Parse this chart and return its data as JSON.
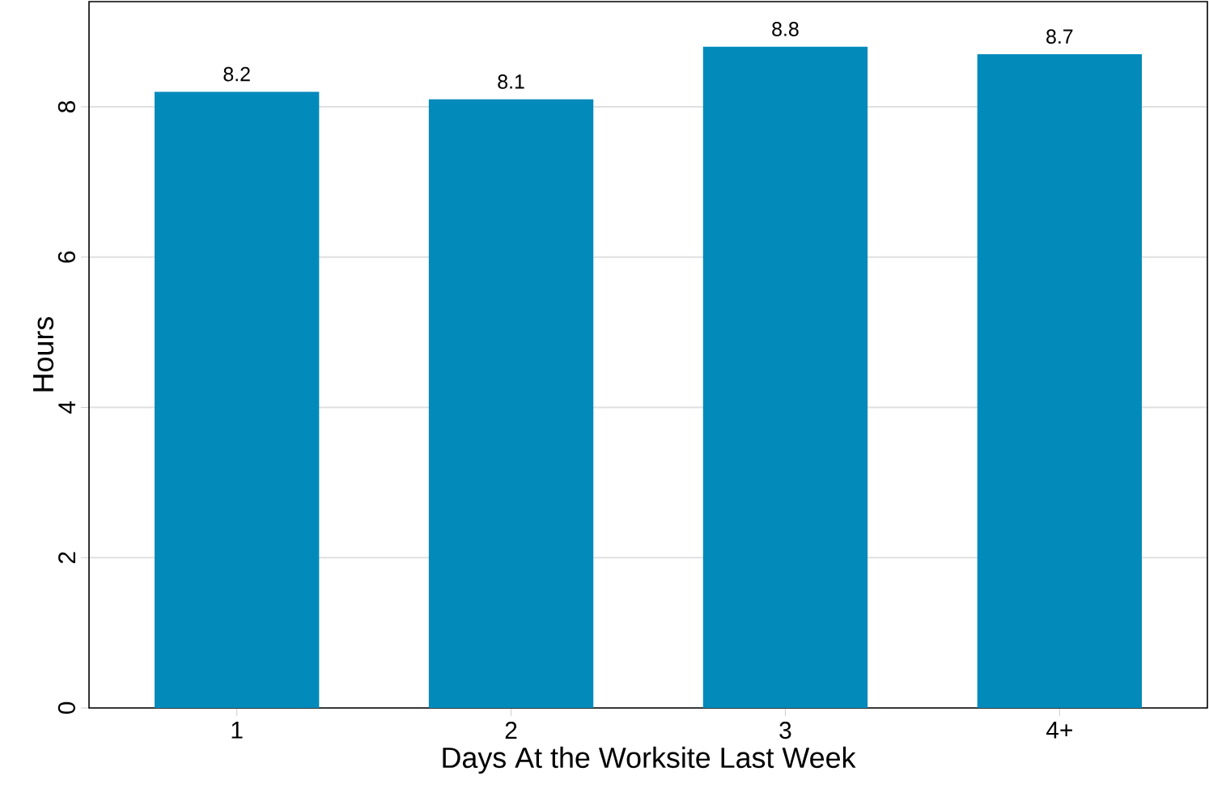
{
  "chart_data": {
    "type": "bar",
    "xlabel": "Days At the Worksite Last Week",
    "ylabel": "Hours",
    "categories": [
      "1",
      "2",
      "3",
      "4+"
    ],
    "values": [
      8.2,
      8.1,
      8.8,
      8.7
    ],
    "color": "#028abb",
    "data_labels": true,
    "grid": "y",
    "ylim": [
      0,
      9.4
    ],
    "yticks": [
      0,
      2,
      4,
      6,
      8
    ]
  }
}
